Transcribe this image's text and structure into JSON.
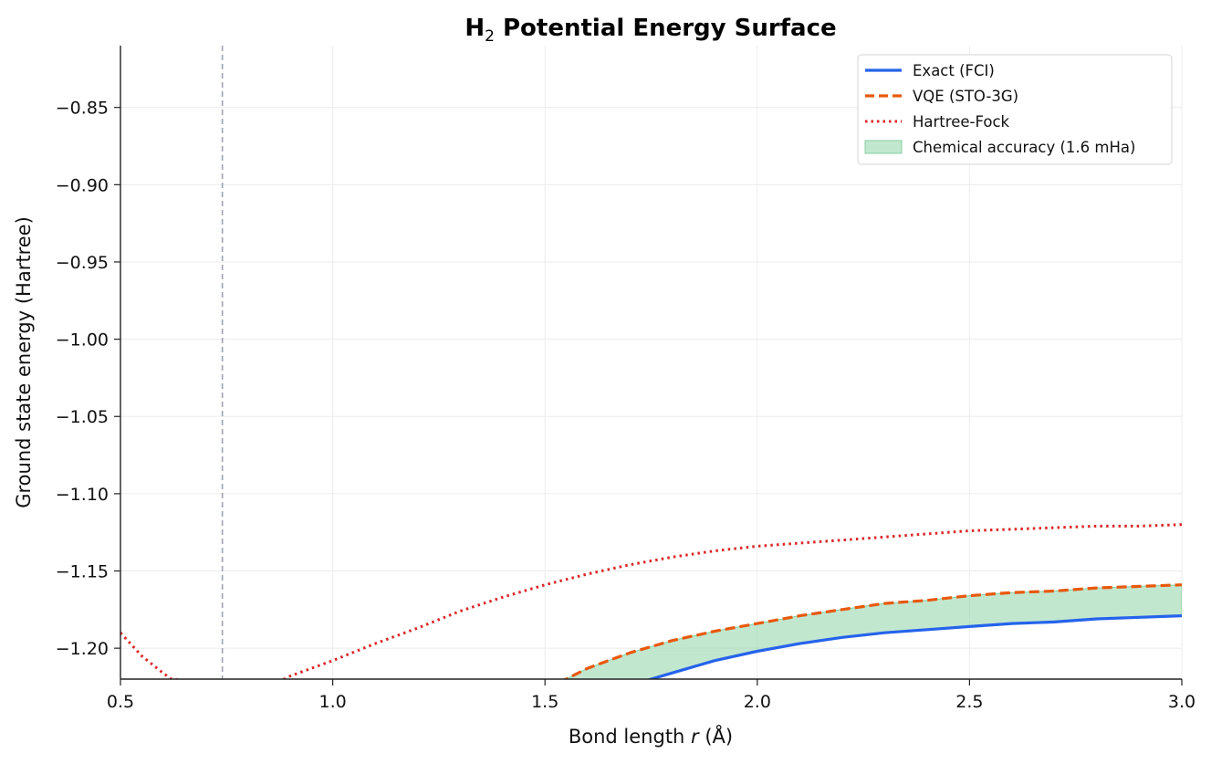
{
  "chart_data": {
    "type": "line",
    "title": "H",
    "title_subscript": "2",
    "title_rest": " Potential Energy Surface",
    "xlabel": "Bond length ",
    "xlabel_var": "r",
    "xlabel_unit": " (Å)",
    "ylabel": "Ground state energy (Hartree)",
    "xlim": [
      0.5,
      3.0
    ],
    "ylim": [
      -1.22,
      -0.81
    ],
    "x_ticks": [
      0.5,
      1.0,
      1.5,
      2.0,
      2.5,
      3.0
    ],
    "x_tick_labels": [
      "0.5",
      "1.0",
      "1.5",
      "2.0",
      "2.5",
      "3.0"
    ],
    "y_ticks": [
      -0.85,
      -0.9,
      -0.95,
      -1.0,
      -1.05,
      -1.1,
      -1.15,
      -1.2
    ],
    "y_tick_labels": [
      "−0.85",
      "−0.90",
      "−0.95",
      "−1.00",
      "−1.05",
      "−1.10",
      "−1.15",
      "−1.20"
    ],
    "grid": true,
    "legend_position": "top-right",
    "equilibrium_marker_x": 0.74,
    "series": [
      {
        "name": "Exact (FCI)",
        "style": "solid",
        "color": "#2563eb",
        "x": [
          1.7,
          1.75,
          1.8,
          1.9,
          2.0,
          2.1,
          2.2,
          2.3,
          2.4,
          2.5,
          2.6,
          2.7,
          2.8,
          2.9,
          3.0
        ],
        "y": [
          -1.225,
          -1.22,
          -1.216,
          -1.208,
          -1.202,
          -1.197,
          -1.193,
          -1.19,
          -1.188,
          -1.186,
          -1.184,
          -1.183,
          -1.181,
          -1.18,
          -1.179
        ]
      },
      {
        "name": "VQE (STO-3G)",
        "style": "dashed",
        "color": "#e8590c",
        "x": [
          1.5,
          1.55,
          1.6,
          1.7,
          1.8,
          1.9,
          2.0,
          2.1,
          2.2,
          2.3,
          2.4,
          2.5,
          2.6,
          2.7,
          2.8,
          2.9,
          3.0
        ],
        "y": [
          -1.225,
          -1.22,
          -1.213,
          -1.203,
          -1.195,
          -1.189,
          -1.184,
          -1.179,
          -1.175,
          -1.171,
          -1.169,
          -1.166,
          -1.164,
          -1.163,
          -1.161,
          -1.16,
          -1.159
        ]
      },
      {
        "name": "Hartree-Fock",
        "style": "dotted",
        "color": "#dc2626",
        "x": [
          0.5,
          0.55,
          0.6,
          0.62,
          0.85,
          0.9,
          1.0,
          1.1,
          1.2,
          1.3,
          1.4,
          1.5,
          1.6,
          1.7,
          1.8,
          1.9,
          2.0,
          2.1,
          2.2,
          2.3,
          2.4,
          2.5,
          2.6,
          2.7,
          2.8,
          2.9,
          3.0
        ],
        "y": [
          -1.19,
          -1.205,
          -1.216,
          -1.22,
          -1.225,
          -1.218,
          -1.208,
          -1.197,
          -1.187,
          -1.176,
          -1.167,
          -1.159,
          -1.152,
          -1.146,
          -1.141,
          -1.137,
          -1.134,
          -1.132,
          -1.13,
          -1.128,
          -1.126,
          -1.124,
          -1.123,
          -1.122,
          -1.121,
          -1.121,
          -1.12
        ]
      }
    ],
    "band": {
      "name": "Chemical accuracy (1.6 mHa)",
      "color": "#86cfa0",
      "between": [
        "Exact (FCI)",
        "VQE (STO-3G)"
      ]
    }
  }
}
